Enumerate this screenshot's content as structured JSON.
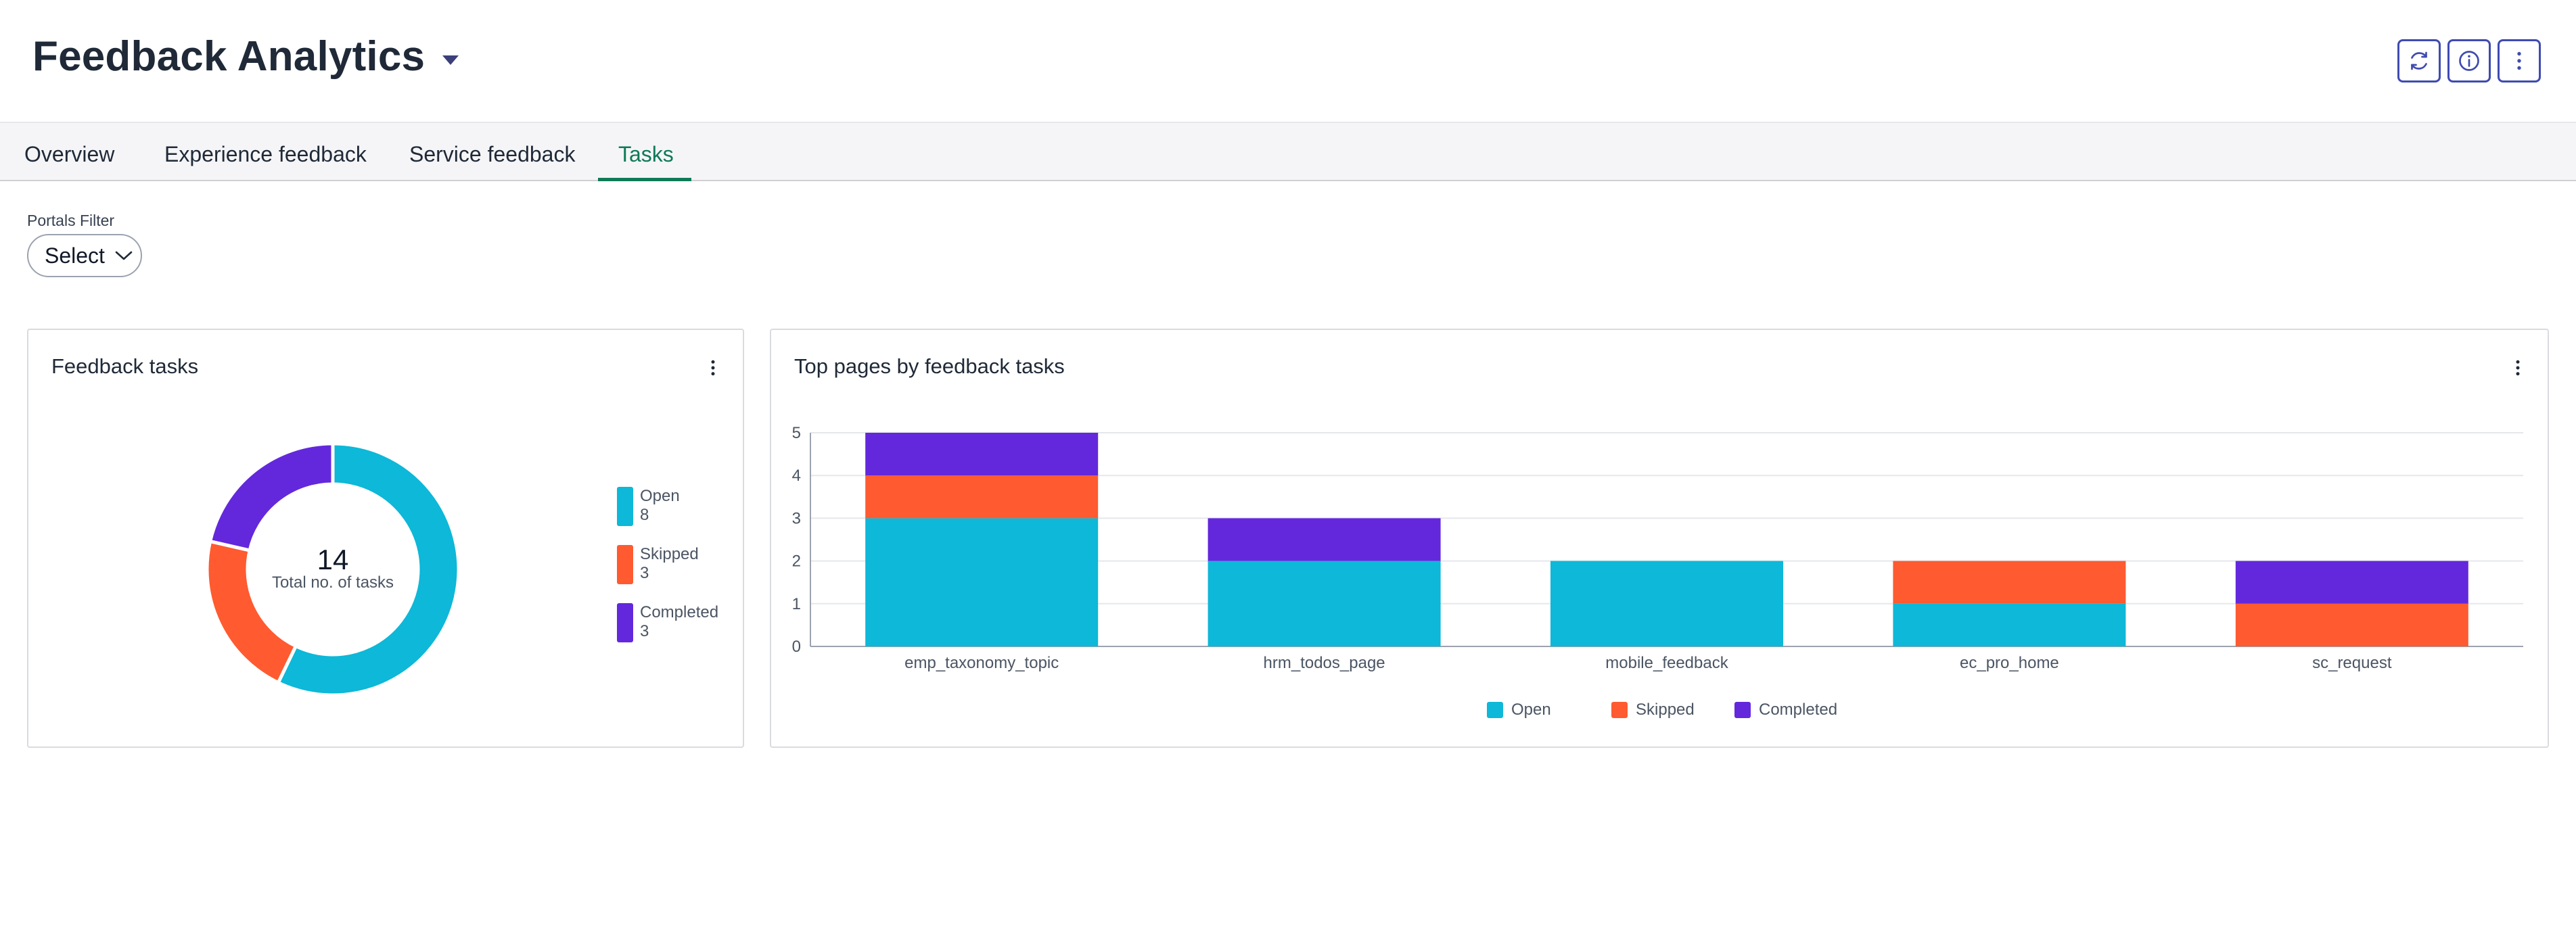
{
  "header": {
    "title": "Feedback Analytics",
    "buttons": [
      {
        "name": "refresh-button",
        "icon": "refresh-icon"
      },
      {
        "name": "info-button",
        "icon": "info-icon"
      },
      {
        "name": "more-button",
        "icon": "more-vertical-icon"
      }
    ]
  },
  "tabs": [
    {
      "label": "Overview",
      "active": false
    },
    {
      "label": "Experience feedback",
      "active": false
    },
    {
      "label": "Service feedback",
      "active": false
    },
    {
      "label": "Tasks",
      "active": true
    }
  ],
  "filter": {
    "label": "Portals Filter",
    "value": "Select"
  },
  "colors": {
    "open": "#0db8d8",
    "skipped": "#ff5a30",
    "completed": "#6328dc",
    "accent": "#0e7a56"
  },
  "donut_card": {
    "title": "Feedback tasks",
    "total": "14",
    "total_label": "Total no. of tasks",
    "legend": [
      {
        "label": "Open",
        "value": "8"
      },
      {
        "label": "Skipped",
        "value": "3"
      },
      {
        "label": "Completed",
        "value": "3"
      }
    ]
  },
  "bar_card": {
    "title": "Top pages by feedback tasks",
    "legend": [
      "Open",
      "Skipped",
      "Completed"
    ]
  },
  "chart_data": [
    {
      "type": "pie",
      "categories": [
        "Open",
        "Skipped",
        "Completed"
      ],
      "values": [
        8,
        3,
        3
      ],
      "title": "Feedback tasks",
      "legend_position": "right"
    },
    {
      "type": "bar",
      "title": "Top pages by feedback tasks",
      "categories": [
        "emp_taxonomy_topic",
        "hrm_todos_page",
        "mobile_feedback",
        "ec_pro_home",
        "sc_request"
      ],
      "series": [
        {
          "name": "Open",
          "values": [
            3,
            2,
            2,
            1,
            0
          ]
        },
        {
          "name": "Skipped",
          "values": [
            1,
            0,
            0,
            1,
            1
          ]
        },
        {
          "name": "Completed",
          "values": [
            1,
            1,
            0,
            0,
            1
          ]
        }
      ],
      "stacked": true,
      "ylim": [
        0,
        5
      ],
      "yticks": [
        "0",
        "1",
        "2",
        "3",
        "4",
        "5"
      ],
      "grid": true,
      "legend_position": "bottom"
    }
  ]
}
